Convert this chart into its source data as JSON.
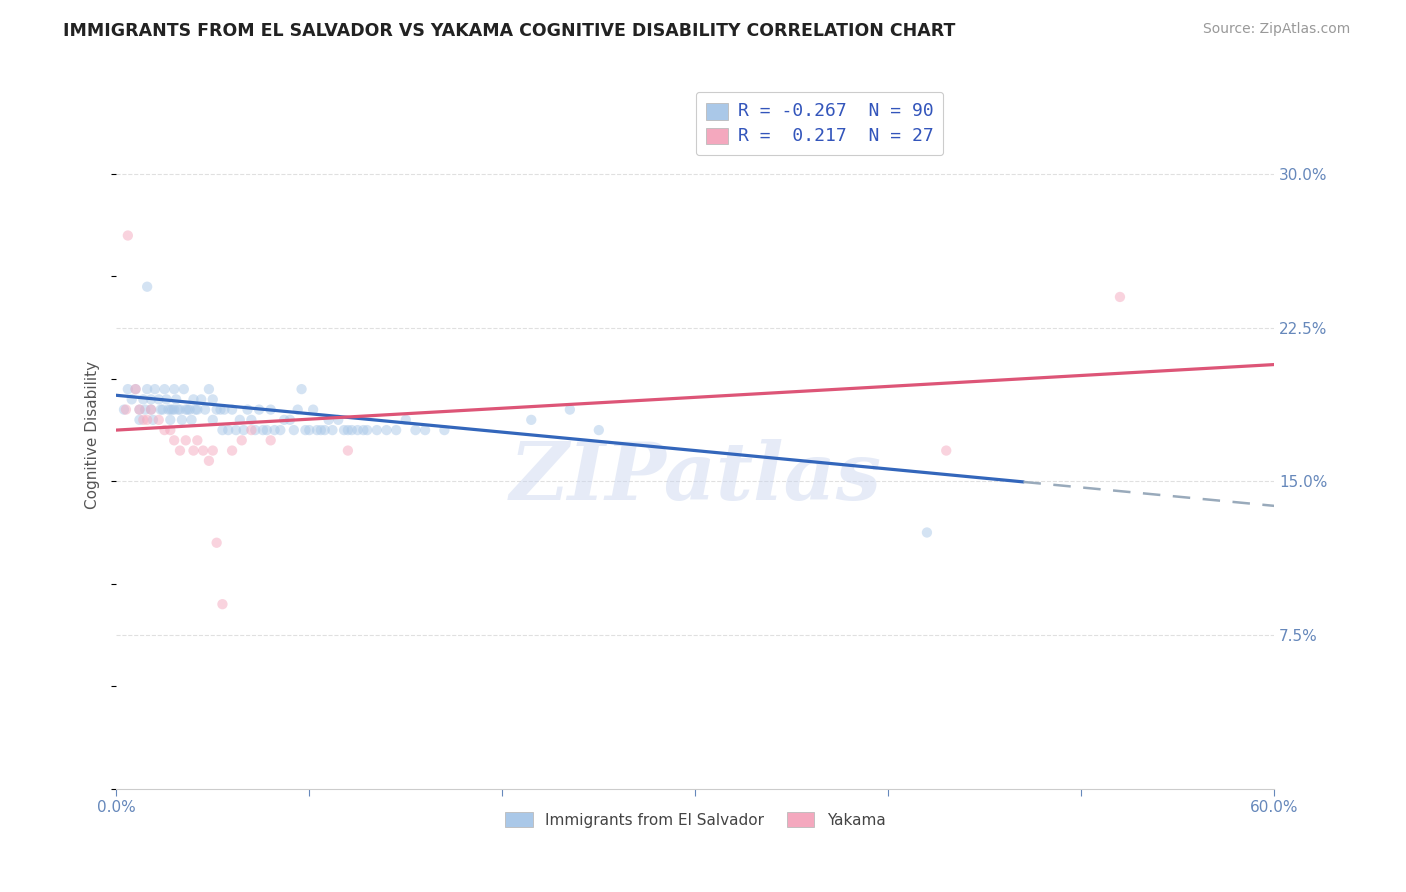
{
  "title": "IMMIGRANTS FROM EL SALVADOR VS YAKAMA COGNITIVE DISABILITY CORRELATION CHART",
  "source": "Source: ZipAtlas.com",
  "ylabel": "Cognitive Disability",
  "ytick_labels": [
    "7.5%",
    "15.0%",
    "22.5%",
    "30.0%"
  ],
  "ytick_values": [
    0.075,
    0.15,
    0.225,
    0.3
  ],
  "xlim": [
    0.0,
    0.6
  ],
  "ylim": [
    0.0,
    0.345
  ],
  "legend_entries": [
    {
      "label": "R = -0.267  N = 90",
      "color": "#aac8e8"
    },
    {
      "label": "R =  0.217  N = 27",
      "color": "#f4a8be"
    }
  ],
  "bottom_legend": [
    {
      "label": "Immigrants from El Salvador",
      "color": "#aac8e8"
    },
    {
      "label": "Yakama",
      "color": "#f4a8be"
    }
  ],
  "blue_scatter": [
    [
      0.004,
      0.185
    ],
    [
      0.006,
      0.195
    ],
    [
      0.008,
      0.19
    ],
    [
      0.01,
      0.195
    ],
    [
      0.012,
      0.185
    ],
    [
      0.012,
      0.18
    ],
    [
      0.014,
      0.19
    ],
    [
      0.015,
      0.185
    ],
    [
      0.016,
      0.195
    ],
    [
      0.018,
      0.185
    ],
    [
      0.018,
      0.19
    ],
    [
      0.019,
      0.18
    ],
    [
      0.02,
      0.195
    ],
    [
      0.022,
      0.19
    ],
    [
      0.023,
      0.185
    ],
    [
      0.024,
      0.185
    ],
    [
      0.025,
      0.195
    ],
    [
      0.026,
      0.19
    ],
    [
      0.027,
      0.185
    ],
    [
      0.028,
      0.185
    ],
    [
      0.028,
      0.18
    ],
    [
      0.029,
      0.185
    ],
    [
      0.03,
      0.195
    ],
    [
      0.03,
      0.185
    ],
    [
      0.031,
      0.19
    ],
    [
      0.032,
      0.185
    ],
    [
      0.033,
      0.185
    ],
    [
      0.034,
      0.18
    ],
    [
      0.035,
      0.195
    ],
    [
      0.036,
      0.185
    ],
    [
      0.037,
      0.185
    ],
    [
      0.038,
      0.185
    ],
    [
      0.039,
      0.18
    ],
    [
      0.04,
      0.19
    ],
    [
      0.041,
      0.185
    ],
    [
      0.042,
      0.185
    ],
    [
      0.044,
      0.19
    ],
    [
      0.046,
      0.185
    ],
    [
      0.048,
      0.195
    ],
    [
      0.05,
      0.19
    ],
    [
      0.05,
      0.18
    ],
    [
      0.052,
      0.185
    ],
    [
      0.054,
      0.185
    ],
    [
      0.055,
      0.175
    ],
    [
      0.056,
      0.185
    ],
    [
      0.058,
      0.175
    ],
    [
      0.06,
      0.185
    ],
    [
      0.062,
      0.175
    ],
    [
      0.064,
      0.18
    ],
    [
      0.066,
      0.175
    ],
    [
      0.068,
      0.185
    ],
    [
      0.07,
      0.18
    ],
    [
      0.072,
      0.175
    ],
    [
      0.074,
      0.185
    ],
    [
      0.076,
      0.175
    ],
    [
      0.078,
      0.175
    ],
    [
      0.08,
      0.185
    ],
    [
      0.082,
      0.175
    ],
    [
      0.085,
      0.175
    ],
    [
      0.087,
      0.18
    ],
    [
      0.09,
      0.18
    ],
    [
      0.092,
      0.175
    ],
    [
      0.094,
      0.185
    ],
    [
      0.096,
      0.195
    ],
    [
      0.098,
      0.175
    ],
    [
      0.1,
      0.175
    ],
    [
      0.102,
      0.185
    ],
    [
      0.104,
      0.175
    ],
    [
      0.106,
      0.175
    ],
    [
      0.108,
      0.175
    ],
    [
      0.11,
      0.18
    ],
    [
      0.112,
      0.175
    ],
    [
      0.115,
      0.18
    ],
    [
      0.118,
      0.175
    ],
    [
      0.12,
      0.175
    ],
    [
      0.122,
      0.175
    ],
    [
      0.125,
      0.175
    ],
    [
      0.128,
      0.175
    ],
    [
      0.13,
      0.175
    ],
    [
      0.135,
      0.175
    ],
    [
      0.14,
      0.175
    ],
    [
      0.145,
      0.175
    ],
    [
      0.15,
      0.18
    ],
    [
      0.155,
      0.175
    ],
    [
      0.16,
      0.175
    ],
    [
      0.17,
      0.175
    ],
    [
      0.215,
      0.18
    ],
    [
      0.235,
      0.185
    ],
    [
      0.25,
      0.175
    ],
    [
      0.42,
      0.125
    ],
    [
      0.016,
      0.245
    ]
  ],
  "pink_scatter": [
    [
      0.005,
      0.185
    ],
    [
      0.006,
      0.27
    ],
    [
      0.01,
      0.195
    ],
    [
      0.012,
      0.185
    ],
    [
      0.014,
      0.18
    ],
    [
      0.016,
      0.18
    ],
    [
      0.018,
      0.185
    ],
    [
      0.022,
      0.18
    ],
    [
      0.025,
      0.175
    ],
    [
      0.028,
      0.175
    ],
    [
      0.03,
      0.17
    ],
    [
      0.033,
      0.165
    ],
    [
      0.036,
      0.17
    ],
    [
      0.04,
      0.165
    ],
    [
      0.042,
      0.17
    ],
    [
      0.045,
      0.165
    ],
    [
      0.048,
      0.16
    ],
    [
      0.05,
      0.165
    ],
    [
      0.052,
      0.12
    ],
    [
      0.055,
      0.09
    ],
    [
      0.06,
      0.165
    ],
    [
      0.065,
      0.17
    ],
    [
      0.07,
      0.175
    ],
    [
      0.08,
      0.17
    ],
    [
      0.12,
      0.165
    ],
    [
      0.43,
      0.165
    ],
    [
      0.52,
      0.24
    ]
  ],
  "blue_line": {
    "x0": 0.0,
    "y0": 0.192,
    "x1": 0.6,
    "y1": 0.138,
    "solid_end": 0.47
  },
  "pink_line": {
    "x0": 0.0,
    "y0": 0.175,
    "x1": 0.6,
    "y1": 0.207
  },
  "title_color": "#222222",
  "title_fontsize": 12.5,
  "source_color": "#999999",
  "source_fontsize": 10,
  "axis_color": "#6688bb",
  "watermark_text": "ZIPatlas",
  "watermark_color": "#c8d4ee",
  "watermark_alpha": 0.45,
  "scatter_size": 55,
  "scatter_alpha": 0.5,
  "grid_color": "#e0e0e0",
  "background_color": "#ffffff",
  "blue_line_color": "#3366bb",
  "blue_dash_color": "#99aabb",
  "pink_line_color": "#dd5577"
}
